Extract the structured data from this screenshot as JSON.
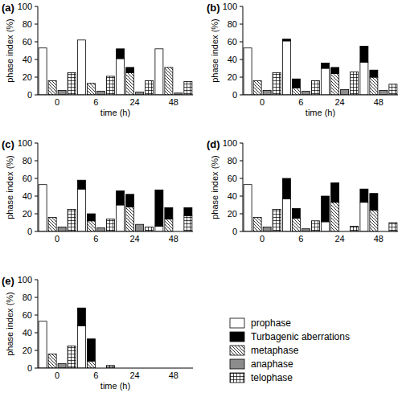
{
  "chart_data": [
    {
      "type": "bar",
      "title": "(a)",
      "stacked": true,
      "legend": "bottom-right",
      "categories": [
        "0",
        "6",
        "24",
        "48"
      ],
      "xlabel": "time (h)",
      "ylabel": "phase index (%)",
      "ylim": [
        0,
        100
      ],
      "yticks": [
        0,
        20,
        40,
        60,
        80,
        100
      ],
      "series": [
        {
          "name": "prophase",
          "color": "#ffffff",
          "values": [
            53,
            62,
            41,
            52
          ]
        },
        {
          "name": "Turbagenic aberrations",
          "color": "#000000",
          "values": [
            [
              0,
              0,
              0,
              0
            ],
            [
              0,
              0,
              0,
              0
            ],
            [
              11,
              6,
              0,
              0
            ],
            [
              0,
              0,
              0,
              0
            ]
          ]
        },
        {
          "name": "metaphase",
          "color": "#ffffff",
          "values": [
            16,
            13,
            25,
            31
          ]
        },
        {
          "name": "anaphase",
          "color": "#8c8c8c",
          "values": [
            5,
            4,
            3,
            2
          ]
        },
        {
          "name": "telophase",
          "color": "#ffffff",
          "values": [
            25,
            21,
            16,
            15
          ]
        }
      ]
    },
    {
      "type": "bar",
      "title": "(b)",
      "stacked": true,
      "categories": [
        "0",
        "6",
        "24",
        "48"
      ],
      "xlabel": "time (h)",
      "ylabel": "phase index (%)",
      "ylim": [
        0,
        100
      ],
      "yticks": [
        0,
        20,
        40,
        60,
        80,
        100
      ],
      "series": [
        {
          "color": "#ffffff",
          "values": [
            53,
            61,
            30,
            37
          ]
        },
        {
          "color": "#000000",
          "values": [
            [
              0,
              0,
              0,
              0
            ],
            [
              2,
              10,
              0,
              0
            ],
            [
              6,
              7,
              0,
              0
            ],
            [
              18,
              8,
              0,
              0
            ]
          ]
        },
        {
          "color": "#ffffff",
          "values": [
            16,
            8,
            24,
            20
          ]
        },
        {
          "color": "#8c8c8c",
          "values": [
            5,
            4,
            6,
            5
          ]
        },
        {
          "color": "#ffffff",
          "values": [
            25,
            16,
            26,
            12
          ]
        }
      ]
    },
    {
      "type": "bar",
      "title": "(c)",
      "stacked": true,
      "categories": [
        "0",
        "6",
        "24",
        "48"
      ],
      "ylabel": "phase index (%)",
      "ylim": [
        0,
        100
      ],
      "yticks": [
        0,
        20,
        40,
        60,
        80,
        100
      ],
      "series": [
        {
          "color": "#ffffff",
          "values": [
            53,
            48,
            30,
            6
          ]
        },
        {
          "color": "#000000",
          "values": [
            [
              0,
              0,
              0,
              0
            ],
            [
              10,
              8,
              0,
              0
            ],
            [
              16,
              14,
              0,
              0
            ],
            [
              41,
              13,
              0,
              9
            ]
          ]
        },
        {
          "color": "#ffffff",
          "values": [
            16,
            12,
            28,
            14
          ]
        },
        {
          "color": "#8c8c8c",
          "values": [
            5,
            4,
            8,
            0
          ]
        },
        {
          "color": "#ffffff",
          "values": [
            25,
            14,
            5,
            18
          ]
        }
      ]
    },
    {
      "type": "bar",
      "title": "(d)",
      "stacked": true,
      "categories": [
        "0",
        "6",
        "24",
        "48"
      ],
      "ylabel": "phase index (%)",
      "ylim": [
        0,
        100
      ],
      "yticks": [
        0,
        20,
        40,
        60,
        80,
        100
      ],
      "series": [
        {
          "color": "#ffffff",
          "values": [
            53,
            37,
            11,
            33
          ]
        },
        {
          "color": "#000000",
          "values": [
            [
              0,
              0,
              0,
              0
            ],
            [
              23,
              11,
              0,
              0
            ],
            [
              29,
              22,
              0,
              0
            ],
            [
              15,
              19,
              0,
              0
            ]
          ]
        },
        {
          "color": "#ffffff",
          "values": [
            16,
            15,
            33,
            24
          ]
        },
        {
          "color": "#8c8c8c",
          "values": [
            5,
            3,
            0,
            0
          ]
        },
        {
          "color": "#ffffff",
          "values": [
            25,
            12,
            6,
            10
          ]
        }
      ]
    },
    {
      "type": "bar",
      "title": "(e)",
      "stacked": true,
      "categories": [
        "0",
        "6",
        "24",
        "48"
      ],
      "xlabel": "time (h)",
      "ylabel": "phase index (%)",
      "ylim": [
        0,
        100
      ],
      "yticks": [
        0,
        20,
        40,
        60,
        80,
        100
      ],
      "series": [
        {
          "color": "#ffffff",
          "values": [
            53,
            48,
            0,
            0
          ]
        },
        {
          "color": "#000000",
          "values": [
            [
              0,
              0,
              0,
              0
            ],
            [
              20,
              25,
              0,
              0
            ],
            [
              0,
              0,
              0,
              0
            ],
            [
              0,
              0,
              0,
              0
            ]
          ]
        },
        {
          "color": "#ffffff",
          "values": [
            16,
            8,
            0,
            0
          ]
        },
        {
          "color": "#8c8c8c",
          "values": [
            5,
            0,
            0,
            0
          ]
        },
        {
          "color": "#ffffff",
          "values": [
            25,
            3,
            0,
            0
          ]
        }
      ]
    }
  ]
}
